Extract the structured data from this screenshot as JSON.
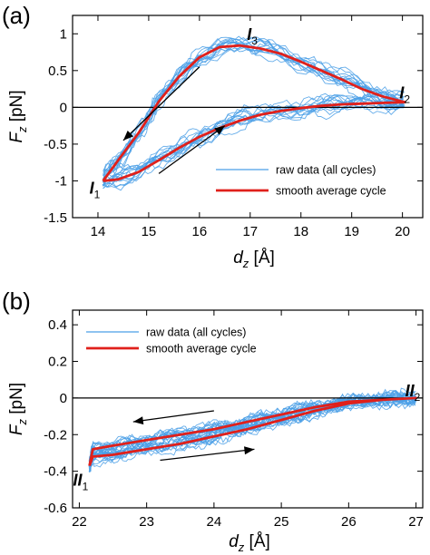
{
  "colors": {
    "raw": "#4a9fe6",
    "average": "#e0201b",
    "zero_line": "#000000",
    "arrow": "#000000"
  },
  "chart_data": [
    {
      "panel_label": "(a)",
      "type": "line",
      "xlabel": {
        "main": "d",
        "sub": "z",
        "unit": " [Å]"
      },
      "ylabel": {
        "main": "F",
        "sub": "z",
        "unit": " [pN]"
      },
      "xlim": [
        13.5,
        20.4
      ],
      "ylim": [
        -1.5,
        1.25
      ],
      "xticks": [
        14,
        15,
        16,
        17,
        18,
        19,
        20
      ],
      "yticks": [
        -1.5,
        -1,
        -0.5,
        0,
        0.5,
        1
      ],
      "zero_line": true,
      "grid": false,
      "legend_position": "lower-right",
      "legend": [
        "raw data (all cycles)",
        "smooth average cycle"
      ],
      "series": [
        {
          "name": "smooth average cycle",
          "x": [
            14.1,
            14.4,
            14.8,
            15.2,
            15.6,
            16.0,
            16.4,
            16.8,
            17.2,
            17.6,
            18.0,
            18.4,
            18.8,
            19.2,
            19.6,
            20.05,
            19.6,
            19.2,
            18.8,
            18.4,
            18.0,
            17.6,
            17.2,
            16.8,
            16.4,
            16.0,
            15.6,
            15.2,
            14.8,
            14.4,
            14.1
          ],
          "y": [
            -1.0,
            -0.98,
            -0.88,
            -0.72,
            -0.55,
            -0.4,
            -0.28,
            -0.18,
            -0.1,
            -0.05,
            -0.01,
            0.02,
            0.04,
            0.05,
            0.06,
            0.07,
            0.15,
            0.25,
            0.38,
            0.5,
            0.62,
            0.73,
            0.8,
            0.84,
            0.82,
            0.68,
            0.42,
            0.08,
            -0.35,
            -0.72,
            -1.0
          ]
        }
      ],
      "annotations": [
        {
          "label": "I",
          "sub": "1",
          "x": 14.1,
          "y": -1.0
        },
        {
          "label": "I",
          "sub": "2",
          "x": 20.05,
          "y": 0.07
        },
        {
          "label": "I",
          "sub": "3",
          "x": 16.9,
          "y": 0.84
        }
      ],
      "arrows": [
        {
          "from": [
            16.0,
            0.55
          ],
          "to": [
            14.5,
            -0.45
          ]
        },
        {
          "from": [
            15.2,
            -0.9
          ],
          "to": [
            16.5,
            -0.25
          ]
        }
      ]
    },
    {
      "panel_label": "(b)",
      "type": "line",
      "xlabel": {
        "main": "d",
        "sub": "z",
        "unit": " [Å]"
      },
      "ylabel": {
        "main": "F",
        "sub": "z",
        "unit": " [pN]"
      },
      "xlim": [
        21.9,
        27.1
      ],
      "ylim": [
        -0.6,
        0.48
      ],
      "xticks": [
        22,
        23,
        24,
        25,
        26,
        27
      ],
      "yticks": [
        -0.6,
        -0.4,
        -0.2,
        0,
        0.2,
        0.4
      ],
      "zero_line": true,
      "grid": false,
      "legend_position": "top-left",
      "legend": [
        "raw data (all cycles)",
        "smooth average cycle"
      ],
      "series": [
        {
          "name": "smooth average cycle",
          "x": [
            22.15,
            22.2,
            22.5,
            23.0,
            23.5,
            24.0,
            24.5,
            25.0,
            25.5,
            26.0,
            26.5,
            27.0,
            26.5,
            26.0,
            25.5,
            25.0,
            24.5,
            24.0,
            23.5,
            23.0,
            22.5,
            22.2,
            22.15
          ],
          "y": [
            -0.37,
            -0.32,
            -0.31,
            -0.28,
            -0.25,
            -0.21,
            -0.17,
            -0.12,
            -0.07,
            -0.03,
            -0.01,
            0.0,
            -0.01,
            -0.02,
            -0.05,
            -0.09,
            -0.13,
            -0.17,
            -0.2,
            -0.23,
            -0.26,
            -0.28,
            -0.37
          ]
        }
      ],
      "annotations": [
        {
          "label": "II",
          "sub": "1",
          "x": 22.15,
          "y": -0.37
        },
        {
          "label": "II",
          "sub": "2",
          "x": 27.0,
          "y": 0.0
        }
      ],
      "arrows": [
        {
          "from": [
            24.0,
            -0.07
          ],
          "to": [
            22.8,
            -0.13
          ]
        },
        {
          "from": [
            23.2,
            -0.34
          ],
          "to": [
            24.6,
            -0.28
          ]
        }
      ]
    }
  ]
}
